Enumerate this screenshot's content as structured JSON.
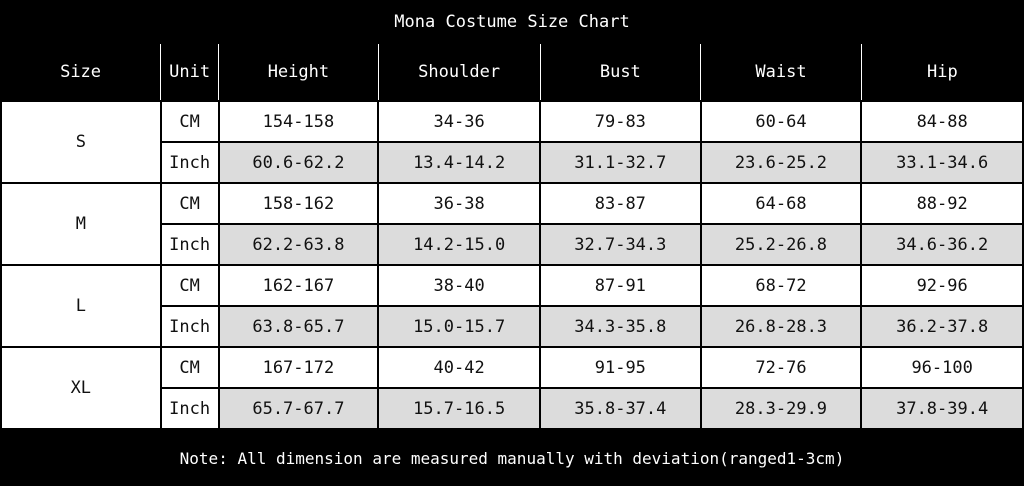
{
  "title": "Mona Costume Size Chart",
  "columns": [
    "Size",
    "Unit",
    "Height",
    "Shoulder",
    "Bust",
    "Waist",
    "Hip"
  ],
  "sizes": [
    {
      "size": "S",
      "rows": [
        {
          "unit": "CM",
          "values": [
            "154-158",
            "34-36",
            "79-83",
            "60-64",
            "84-88"
          ]
        },
        {
          "unit": "Inch",
          "values": [
            "60.6-62.2",
            "13.4-14.2",
            "31.1-32.7",
            "23.6-25.2",
            "33.1-34.6"
          ]
        }
      ]
    },
    {
      "size": "M",
      "rows": [
        {
          "unit": "CM",
          "values": [
            "158-162",
            "36-38",
            "83-87",
            "64-68",
            "88-92"
          ]
        },
        {
          "unit": "Inch",
          "values": [
            "62.2-63.8",
            "14.2-15.0",
            "32.7-34.3",
            "25.2-26.8",
            "34.6-36.2"
          ]
        }
      ]
    },
    {
      "size": "L",
      "rows": [
        {
          "unit": "CM",
          "values": [
            "162-167",
            "38-40",
            "87-91",
            "68-72",
            "92-96"
          ]
        },
        {
          "unit": "Inch",
          "values": [
            "63.8-65.7",
            "15.0-15.7",
            "34.3-35.8",
            "26.8-28.3",
            "36.2-37.8"
          ]
        }
      ]
    },
    {
      "size": "XL",
      "rows": [
        {
          "unit": "CM",
          "values": [
            "167-172",
            "40-42",
            "91-95",
            "72-76",
            "96-100"
          ]
        },
        {
          "unit": "Inch",
          "values": [
            "65.7-67.7",
            "15.7-16.5",
            "35.8-37.4",
            "28.3-29.9",
            "37.8-39.4"
          ]
        }
      ]
    }
  ],
  "note": "Note: All dimension are measured manually with deviation(ranged1-3cm)"
}
